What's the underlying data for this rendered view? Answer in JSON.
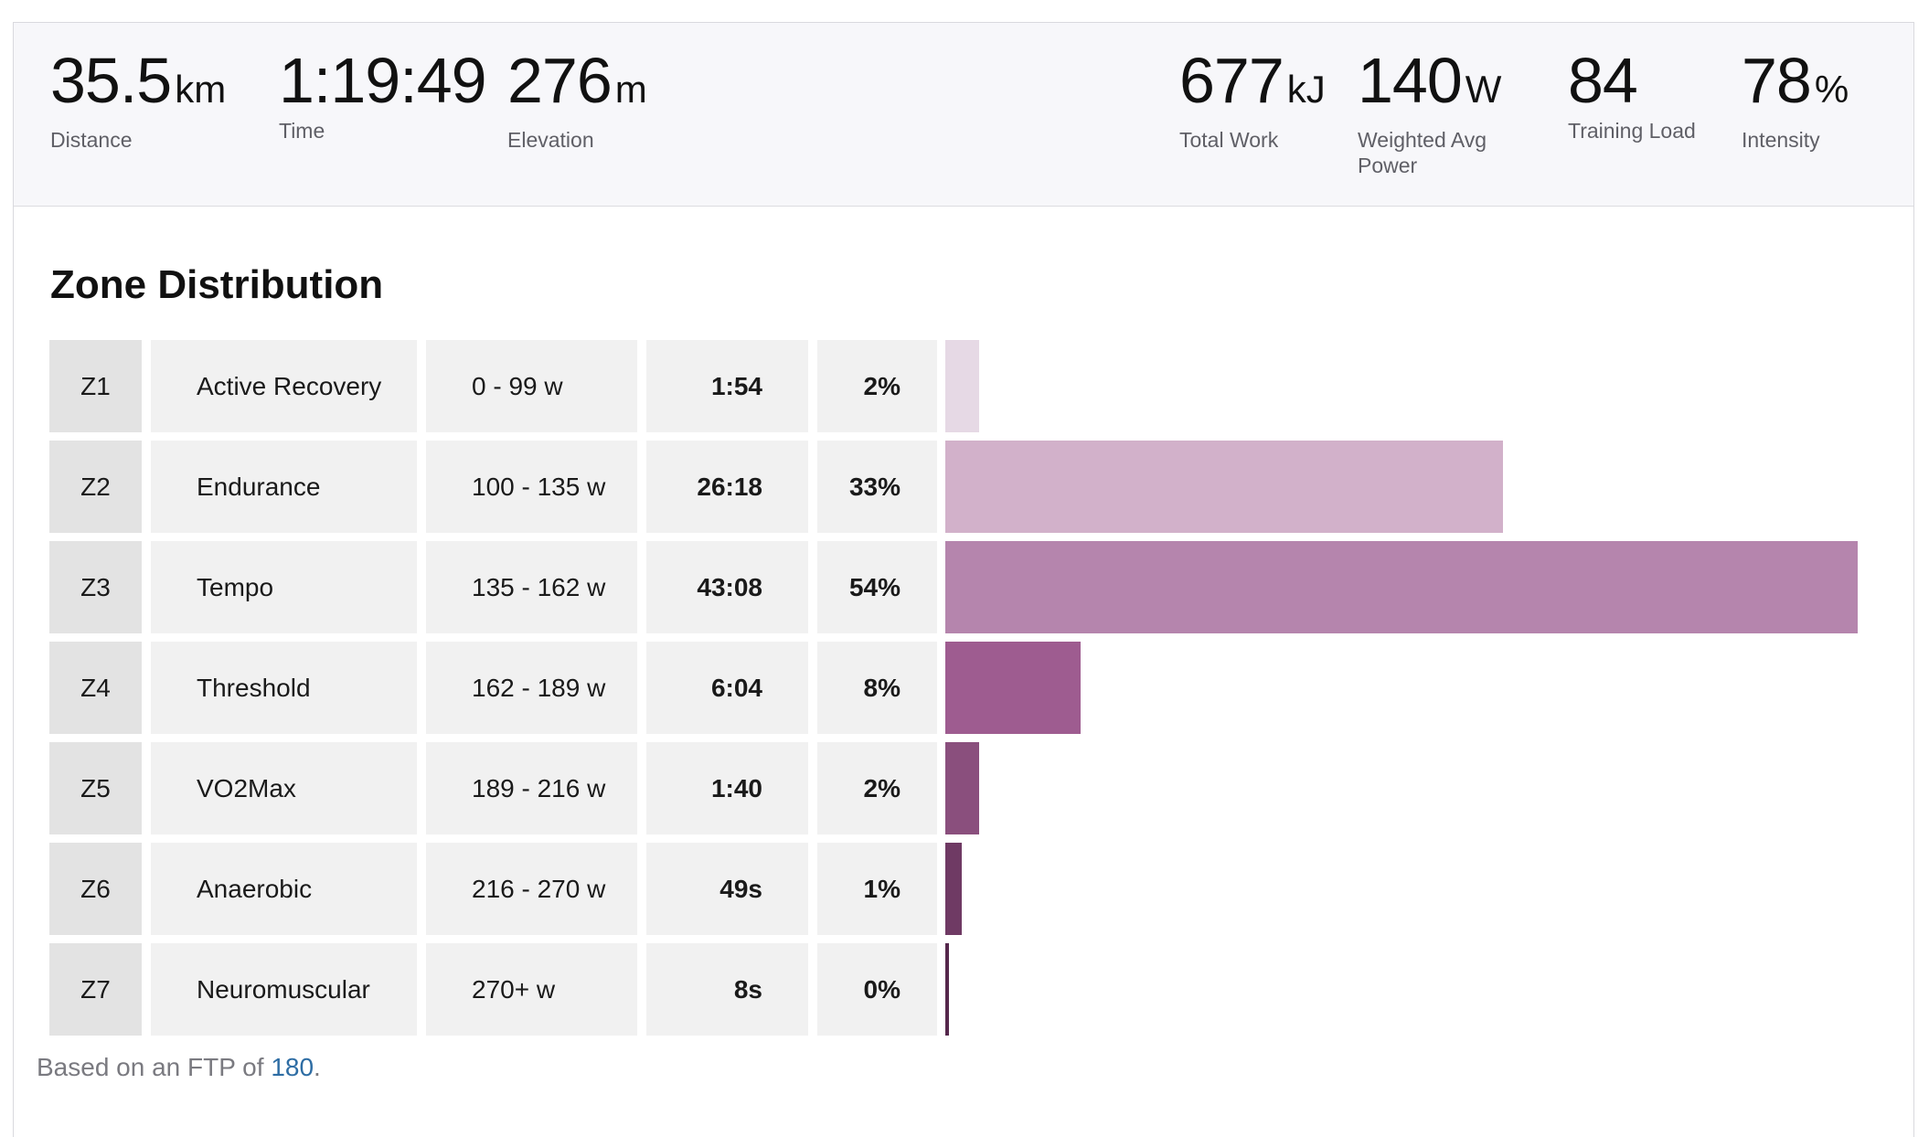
{
  "summary": {
    "distance": {
      "value": "35.5",
      "unit": "km",
      "label": "Distance"
    },
    "time": {
      "value": "1:19:49",
      "unit": "",
      "label": "Time"
    },
    "elevation": {
      "value": "276",
      "unit": "m",
      "label": "Elevation"
    },
    "total_work": {
      "value": "677",
      "unit": "kJ",
      "label": "Total Work"
    },
    "weighted_avg_power": {
      "value": "140",
      "unit": "W",
      "label_line1": "Weighted Avg",
      "label_line2": "Power"
    },
    "training_load": {
      "value": "84",
      "unit": "",
      "label": "Training Load"
    },
    "intensity": {
      "value": "78",
      "unit": "%",
      "label": "Intensity"
    }
  },
  "zone_distribution": {
    "title": "Zone Distribution",
    "zones": [
      {
        "code": "Z1",
        "name": "Active Recovery",
        "range": "0 - 99 w",
        "time": "1:54",
        "percent": "2%",
        "fraction": 0.02,
        "color": "#e6d9e5"
      },
      {
        "code": "Z2",
        "name": "Endurance",
        "range": "100 - 135 w",
        "time": "26:18",
        "percent": "33%",
        "fraction": 0.33,
        "color": "#d2b1ca"
      },
      {
        "code": "Z3",
        "name": "Tempo",
        "range": "135 - 162 w",
        "time": "43:08",
        "percent": "54%",
        "fraction": 0.54,
        "color": "#b585ad"
      },
      {
        "code": "Z4",
        "name": "Threshold",
        "range": "162 - 189 w",
        "time": "6:04",
        "percent": "8%",
        "fraction": 0.08,
        "color": "#9e5c90"
      },
      {
        "code": "Z5",
        "name": "VO2Max",
        "range": "189 - 216 w",
        "time": "1:40",
        "percent": "2%",
        "fraction": 0.02,
        "color": "#8a4f7d"
      },
      {
        "code": "Z6",
        "name": "Anaerobic",
        "range": "216 - 270 w",
        "time": "49s",
        "percent": "1%",
        "fraction": 0.01,
        "color": "#6f3a64"
      },
      {
        "code": "Z7",
        "name": "Neuromuscular",
        "range": "270+ w",
        "time": "8s",
        "percent": "0%",
        "fraction": 0.002,
        "color": "#55284c"
      }
    ],
    "max_fraction": 0.54
  },
  "footer": {
    "prefix": "Based on an FTP of",
    "ftp_value": "180",
    "suffix": "."
  }
}
